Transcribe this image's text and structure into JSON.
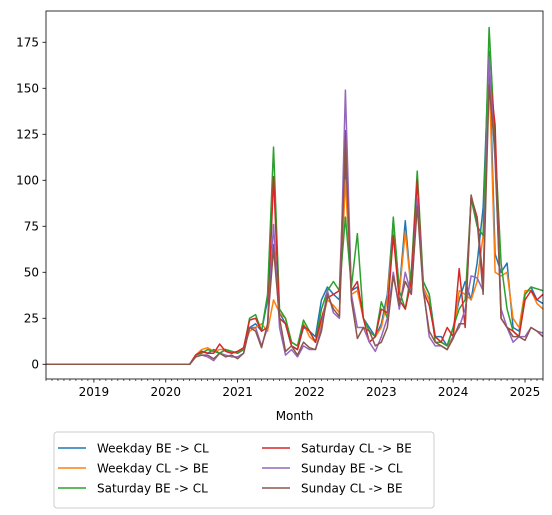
{
  "chart_data": {
    "type": "line",
    "title": "",
    "xlabel": "Month",
    "ylabel": "",
    "xlim": [
      "2018-05",
      "2025-04"
    ],
    "ylim": [
      -8,
      192
    ],
    "x_ticks": [
      "2019",
      "2020",
      "2021",
      "2022",
      "2023",
      "2024",
      "2025"
    ],
    "y_ticks": [
      0,
      25,
      50,
      75,
      100,
      125,
      150,
      175
    ],
    "grid": false,
    "legend_position": "below",
    "legend_columns": 2,
    "x": [
      "2018-05",
      "2020-05",
      "2020-06",
      "2020-07",
      "2020-08",
      "2020-09",
      "2020-10",
      "2020-11",
      "2020-12",
      "2021-01",
      "2021-02",
      "2021-03",
      "2021-04",
      "2021-05",
      "2021-06",
      "2021-07",
      "2021-08",
      "2021-09",
      "2021-10",
      "2021-11",
      "2021-12",
      "2022-01",
      "2022-02",
      "2022-03",
      "2022-04",
      "2022-05",
      "2022-06",
      "2022-07",
      "2022-08",
      "2022-09",
      "2022-10",
      "2022-11",
      "2022-12",
      "2023-01",
      "2023-02",
      "2023-03",
      "2023-04",
      "2023-05",
      "2023-06",
      "2023-07",
      "2023-08",
      "2023-09",
      "2023-10",
      "2023-11",
      "2023-12",
      "2024-01",
      "2024-02",
      "2024-03",
      "2024-04",
      "2024-05",
      "2024-06",
      "2024-07",
      "2024-08",
      "2024-09",
      "2024-10",
      "2024-11",
      "2024-12",
      "2025-01",
      "2025-02",
      "2025-03",
      "2025-04"
    ],
    "series": [
      {
        "name": "Weekday BE -> CL",
        "color": "#1f77b4",
        "values": [
          0,
          0,
          5,
          7,
          6,
          8,
          6,
          8,
          7,
          6,
          8,
          20,
          22,
          18,
          35,
          65,
          28,
          22,
          10,
          8,
          20,
          18,
          15,
          35,
          42,
          38,
          35,
          110,
          40,
          42,
          25,
          20,
          15,
          22,
          38,
          78,
          40,
          78,
          40,
          88,
          45,
          38,
          15,
          15,
          10,
          20,
          35,
          45,
          35,
          55,
          85,
          170,
          60,
          50,
          55,
          20,
          18,
          38,
          42,
          35,
          33
        ]
      },
      {
        "name": "Weekday CL -> BE",
        "color": "#ff7f0e",
        "values": [
          0,
          0,
          5,
          8,
          9,
          7,
          8,
          8,
          6,
          7,
          9,
          18,
          20,
          22,
          18,
          35,
          28,
          25,
          12,
          10,
          22,
          15,
          12,
          22,
          35,
          32,
          28,
          100,
          38,
          40,
          25,
          18,
          15,
          20,
          35,
          75,
          38,
          72,
          40,
          90,
          42,
          35,
          15,
          12,
          10,
          15,
          40,
          38,
          35,
          45,
          70,
          160,
          50,
          48,
          50,
          25,
          20,
          40,
          40,
          33,
          30
        ]
      },
      {
        "name": "Saturday BE -> CL",
        "color": "#2ca02c",
        "values": [
          0,
          0,
          5,
          6,
          8,
          7,
          6,
          8,
          7,
          6,
          8,
          25,
          27,
          18,
          38,
          118,
          30,
          25,
          12,
          10,
          24,
          18,
          12,
          30,
          40,
          45,
          40,
          80,
          42,
          71,
          25,
          18,
          15,
          34,
          25,
          80,
          40,
          30,
          50,
          105,
          45,
          38,
          12,
          12,
          10,
          20,
          30,
          35,
          90,
          75,
          70,
          183,
          120,
          55,
          30,
          18,
          15,
          38,
          42,
          41,
          40
        ]
      },
      {
        "name": "Saturday CL -> BE",
        "color": "#d62728",
        "values": [
          0,
          0,
          5,
          7,
          6,
          6,
          11,
          7,
          6,
          7,
          9,
          24,
          25,
          18,
          20,
          102,
          25,
          22,
          10,
          8,
          21,
          18,
          12,
          25,
          36,
          38,
          40,
          127,
          40,
          45,
          25,
          12,
          15,
          30,
          28,
          70,
          35,
          30,
          45,
          100,
          40,
          32,
          15,
          12,
          20,
          15,
          52,
          20,
          91,
          80,
          45,
          160,
          130,
          25,
          20,
          18,
          15,
          35,
          40,
          35,
          38
        ]
      },
      {
        "name": "Sunday BE -> CL",
        "color": "#9467bd",
        "values": [
          0,
          0,
          4,
          5,
          4,
          2,
          6,
          5,
          4,
          4,
          6,
          20,
          20,
          10,
          20,
          76,
          20,
          5,
          8,
          4,
          10,
          8,
          8,
          20,
          40,
          28,
          25,
          149,
          38,
          20,
          20,
          12,
          7,
          15,
          25,
          50,
          30,
          50,
          38,
          90,
          42,
          15,
          10,
          10,
          8,
          15,
          20,
          30,
          48,
          47,
          40,
          167,
          110,
          30,
          20,
          12,
          15,
          15,
          20,
          18,
          17
        ]
      },
      {
        "name": "Sunday CL -> BE",
        "color": "#8c564b",
        "values": [
          0,
          0,
          4,
          5,
          5,
          3,
          6,
          4,
          5,
          3,
          6,
          20,
          18,
          9,
          22,
          63,
          25,
          7,
          10,
          5,
          12,
          9,
          8,
          18,
          38,
          30,
          26,
          122,
          35,
          14,
          20,
          18,
          10,
          12,
          20,
          48,
          32,
          45,
          38,
          86,
          40,
          18,
          12,
          10,
          8,
          14,
          22,
          22,
          92,
          78,
          38,
          152,
          115,
          25,
          20,
          15,
          15,
          13,
          20,
          18,
          15
        ]
      }
    ]
  }
}
